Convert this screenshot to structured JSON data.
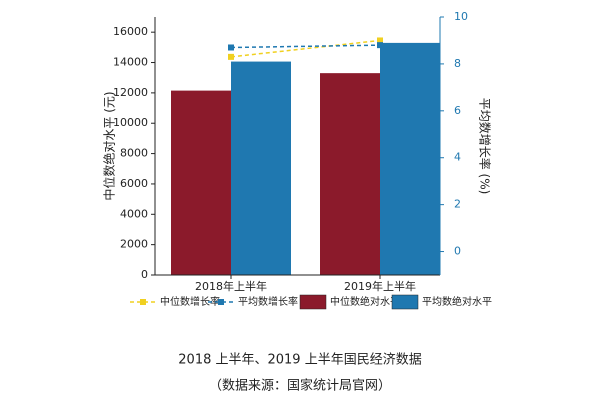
{
  "chart_data": {
    "type": "bar",
    "title": "2018 上半年、2019 上半年国民经济数据",
    "subtitle": "（数据来源：国家统计局官网）",
    "y_label": "中位数绝对水平 (元)",
    "y2_label": "平均数增长率 (%)",
    "categories": [
      "2018年上半年",
      "2019年上半年"
    ],
    "series": [
      {
        "name": "中位数增长率",
        "type": "line",
        "axis": "y2",
        "color": "#f0d020",
        "values": [
          8.3,
          9.0
        ]
      },
      {
        "name": "平均数增长率",
        "type": "line",
        "axis": "y2",
        "color": "#1f78b0",
        "values": [
          8.7,
          8.8
        ]
      },
      {
        "name": "中位数绝对水平",
        "type": "bar",
        "color": "#8b1a2b",
        "values": [
          12150,
          13300
        ]
      },
      {
        "name": "平均数绝对水平",
        "type": "bar",
        "color": "#1f78b0",
        "values": [
          14063,
          15294
        ]
      }
    ],
    "ylim": [
      0,
      17000
    ],
    "yticks": [
      0,
      2000,
      4000,
      6000,
      8000,
      10000,
      12000,
      14000,
      16000
    ],
    "y2lim": [
      -1,
      10
    ],
    "y2ticks": [
      0,
      2,
      4,
      6,
      8,
      10
    ],
    "y2_color": "#1f78b0"
  }
}
